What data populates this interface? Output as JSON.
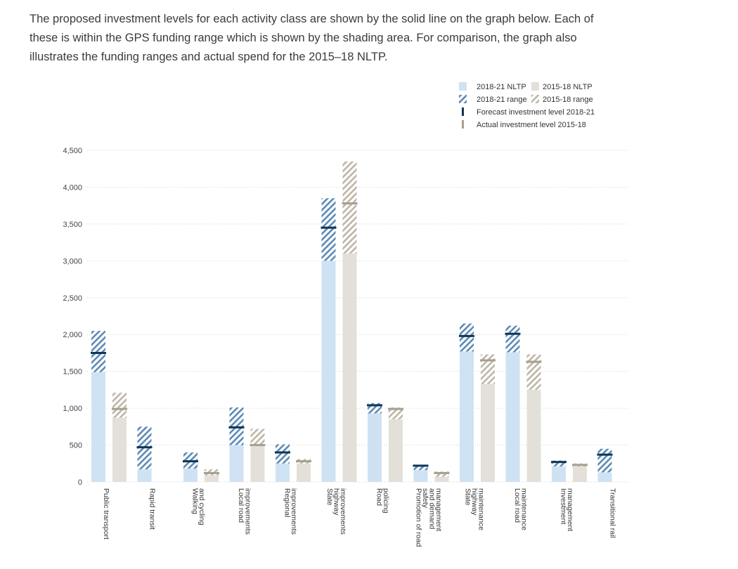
{
  "intro": {
    "text": "The proposed investment levels for each activity class are shown by the solid line on the graph below. Each of these is within the GPS funding range which is shown by the shading area. For comparison, the graph also illustrates the funding ranges and actual spend for the 2015–18 NLTP."
  },
  "legend": {
    "nltp_new": "2018-21 NLTP",
    "nltp_old": "2015-18 NLTP",
    "range_new": "2018-21 range",
    "range_old": "2015-18 range",
    "forecast": "Forecast investment level 2018-21",
    "actual": "Actual investment level 2015-18"
  },
  "colors": {
    "bar_new": "#cfe2f3",
    "bar_old": "#e3e0d9",
    "hatch_new": "#5b8ab5",
    "hatch_old": "#bdb5a6",
    "line_new": "#0e3555",
    "line_old": "#a89f90",
    "grid": "#d6d6d6"
  },
  "chart_data": {
    "type": "bar",
    "ylim": [
      0,
      4500
    ],
    "yticks": [
      "4,500",
      "4,000",
      "3,500",
      "3,000",
      "2,500",
      "2,000",
      "1,500",
      "1,000",
      "500",
      "0"
    ],
    "ytick_values": [
      4500,
      4000,
      3500,
      3000,
      2500,
      2000,
      1500,
      1000,
      500,
      0
    ],
    "categories": [
      [
        "Public transport"
      ],
      [
        "Rapid transit"
      ],
      [
        "Walking",
        "and cycling"
      ],
      [
        "Local road",
        "improvements"
      ],
      [
        "Regional",
        "improvements"
      ],
      [
        "State",
        "highway",
        "improvements"
      ],
      [
        "Road",
        "policing"
      ],
      [
        "Promotion of road",
        "safety",
        "and demand",
        "management"
      ],
      [
        "State",
        "highway",
        "maintenance"
      ],
      [
        "Local road",
        "maintenance"
      ],
      [
        "Investment",
        "management"
      ],
      [
        "Transitional rail"
      ]
    ],
    "series": [
      {
        "name": "2018-21 NLTP",
        "range_low": [
          1490,
          170,
          180,
          500,
          250,
          3000,
          930,
          160,
          1770,
          1760,
          210,
          130
        ],
        "range_high": [
          2050,
          750,
          400,
          1010,
          510,
          3850,
          1070,
          230,
          2150,
          2120,
          290,
          450
        ],
        "forecast": [
          1750,
          470,
          280,
          740,
          400,
          3450,
          1040,
          220,
          1980,
          2010,
          270,
          370
        ]
      },
      {
        "name": "2015-18 NLTP",
        "range_low": [
          870,
          null,
          90,
          500,
          250,
          3100,
          850,
          70,
          1330,
          1250,
          210,
          null
        ],
        "range_high": [
          1210,
          null,
          170,
          720,
          310,
          4350,
          1010,
          140,
          1730,
          1730,
          250,
          null
        ],
        "actual": [
          990,
          null,
          120,
          500,
          280,
          3780,
          990,
          120,
          1650,
          1630,
          230,
          null
        ]
      }
    ]
  }
}
